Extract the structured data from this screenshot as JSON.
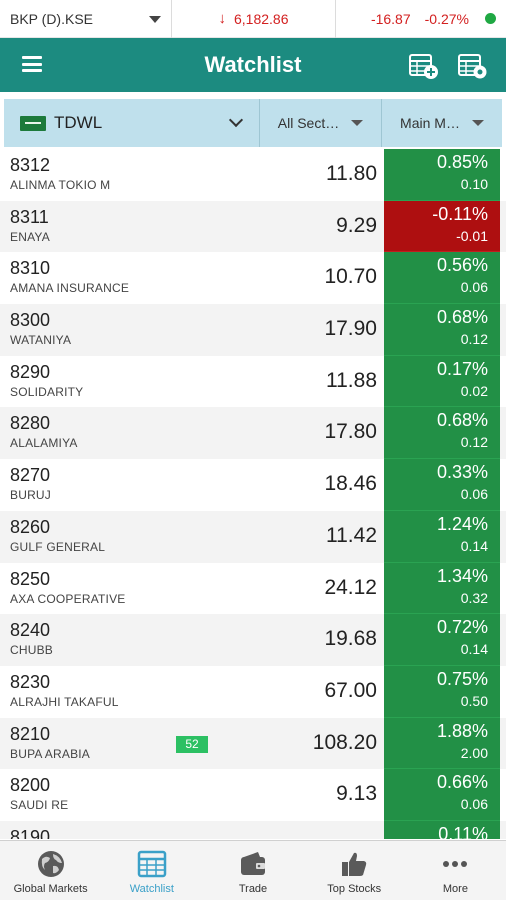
{
  "ticker": {
    "symbol": "BKP (D).KSE",
    "index_value": "6,182.86",
    "change": "-16.87",
    "change_pct": "-0.27%",
    "status_color": "#1fa843"
  },
  "header": {
    "title": "Watchlist",
    "menu_icon": "hamburger-menu-icon",
    "add_icon": "add-watchlist-icon",
    "settings_icon": "watchlist-settings-icon"
  },
  "filters": {
    "exchange": "TDWL",
    "sector": "All Sect…",
    "market": "Main M…"
  },
  "colors": {
    "primary": "#1c8b80",
    "positive": "#229046",
    "negative": "#ae0f10",
    "filter_bar": "#bfe0ec"
  },
  "rows": [
    {
      "code": "8312",
      "name": "ALINMA TOKIO M",
      "price": "11.80",
      "pct": "0.85%",
      "abs": "0.10",
      "dir": "up"
    },
    {
      "code": "8311",
      "name": "ENAYA",
      "price": "9.29",
      "pct": "-0.11%",
      "abs": "-0.01",
      "dir": "down"
    },
    {
      "code": "8310",
      "name": "AMANA INSURANCE",
      "price": "10.70",
      "pct": "0.56%",
      "abs": "0.06",
      "dir": "up"
    },
    {
      "code": "8300",
      "name": "WATANIYA",
      "price": "17.90",
      "pct": "0.68%",
      "abs": "0.12",
      "dir": "up"
    },
    {
      "code": "8290",
      "name": "SOLIDARITY",
      "price": "11.88",
      "pct": "0.17%",
      "abs": "0.02",
      "dir": "up"
    },
    {
      "code": "8280",
      "name": "ALALAMIYA",
      "price": "17.80",
      "pct": "0.68%",
      "abs": "0.12",
      "dir": "up"
    },
    {
      "code": "8270",
      "name": "BURUJ",
      "price": "18.46",
      "pct": "0.33%",
      "abs": "0.06",
      "dir": "up"
    },
    {
      "code": "8260",
      "name": "GULF GENERAL",
      "price": "11.42",
      "pct": "1.24%",
      "abs": "0.14",
      "dir": "up"
    },
    {
      "code": "8250",
      "name": "AXA COOPERATIVE",
      "price": "24.12",
      "pct": "1.34%",
      "abs": "0.32",
      "dir": "up"
    },
    {
      "code": "8240",
      "name": "CHUBB",
      "price": "19.68",
      "pct": "0.72%",
      "abs": "0.14",
      "dir": "up"
    },
    {
      "code": "8230",
      "name": "ALRAJHI TAKAFUL",
      "price": "67.00",
      "pct": "0.75%",
      "abs": "0.50",
      "dir": "up"
    },
    {
      "code": "8210",
      "name": "BUPA ARABIA",
      "price": "108.20",
      "pct": "1.88%",
      "abs": "2.00",
      "dir": "up",
      "badge": "52"
    },
    {
      "code": "8200",
      "name": "SAUDI RE",
      "price": "9.13",
      "pct": "0.66%",
      "abs": "0.06",
      "dir": "up"
    },
    {
      "code": "8190",
      "name": "",
      "price": "",
      "pct": "0.11%",
      "abs": "",
      "dir": "up"
    }
  ],
  "nav": [
    {
      "label": "Global Markets",
      "icon": "globe-icon"
    },
    {
      "label": "Watchlist",
      "icon": "watchlist-icon",
      "active": true
    },
    {
      "label": "Trade",
      "icon": "wallet-icon"
    },
    {
      "label": "Top Stocks",
      "icon": "thumbs-up-icon"
    },
    {
      "label": "More",
      "icon": "more-dots-icon"
    }
  ]
}
